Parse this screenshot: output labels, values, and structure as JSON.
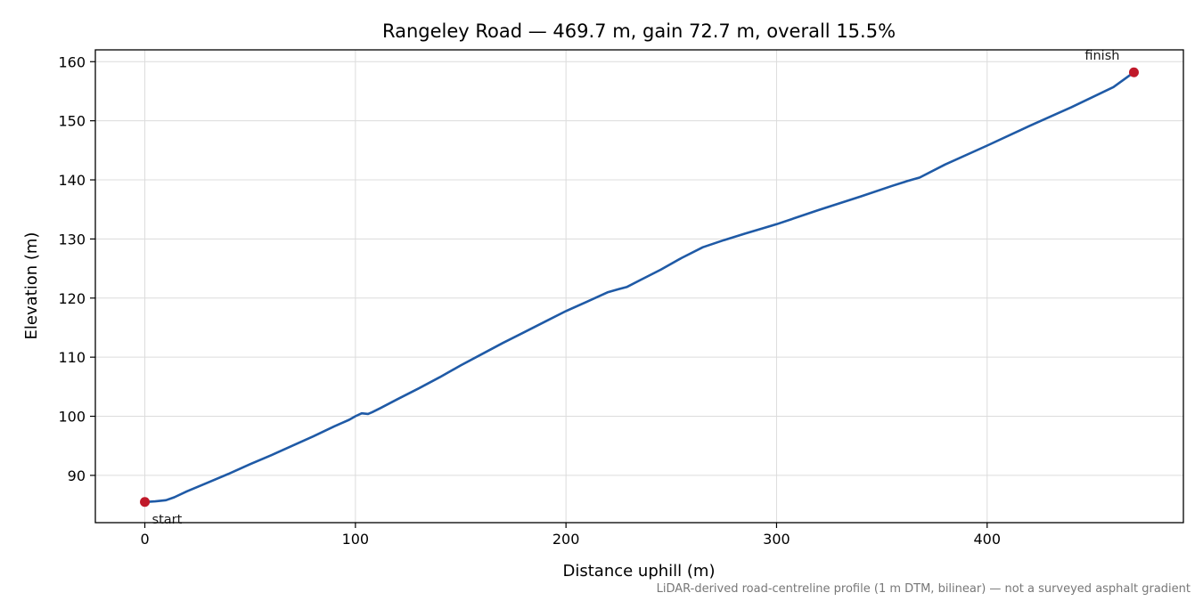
{
  "chart_data": {
    "type": "line",
    "title": "Rangeley Road — 469.7 m, gain 72.7 m, overall 15.5%",
    "xlabel": "Distance uphill (m)",
    "ylabel": "Elevation (m)",
    "footnote": "LiDAR-derived road-centreline profile (1 m DTM, bilinear) — not a surveyed asphalt gradient",
    "xlim": [
      -23.5,
      493.2
    ],
    "ylim": [
      82,
      162
    ],
    "xticks": [
      0,
      100,
      200,
      300,
      400
    ],
    "yticks": [
      90,
      100,
      110,
      120,
      130,
      140,
      150,
      160
    ],
    "grid": true,
    "series": [
      {
        "color": "#1f5aa6",
        "points": [
          [
            0,
            85.5
          ],
          [
            5,
            85.6
          ],
          [
            10,
            85.8
          ],
          [
            14,
            86.3
          ],
          [
            20,
            87.3
          ],
          [
            30,
            88.8
          ],
          [
            40,
            90.3
          ],
          [
            50,
            91.9
          ],
          [
            60,
            93.4
          ],
          [
            70,
            95.0
          ],
          [
            80,
            96.6
          ],
          [
            90,
            98.3
          ],
          [
            97,
            99.4
          ],
          [
            100,
            100.0
          ],
          [
            103,
            100.5
          ],
          [
            106,
            100.4
          ],
          [
            108,
            100.7
          ],
          [
            112,
            101.4
          ],
          [
            120,
            102.9
          ],
          [
            130,
            104.7
          ],
          [
            140,
            106.6
          ],
          [
            150,
            108.6
          ],
          [
            160,
            110.5
          ],
          [
            170,
            112.4
          ],
          [
            180,
            114.2
          ],
          [
            190,
            116.0
          ],
          [
            200,
            117.8
          ],
          [
            210,
            119.4
          ],
          [
            220,
            121.0
          ],
          [
            225,
            121.5
          ],
          [
            229,
            121.9
          ],
          [
            235,
            123.0
          ],
          [
            245,
            124.8
          ],
          [
            255,
            126.8
          ],
          [
            265,
            128.6
          ],
          [
            275,
            129.8
          ],
          [
            285,
            130.9
          ],
          [
            300,
            132.5
          ],
          [
            320,
            134.9
          ],
          [
            340,
            137.2
          ],
          [
            355,
            139.0
          ],
          [
            362,
            139.8
          ],
          [
            368,
            140.4
          ],
          [
            380,
            142.6
          ],
          [
            400,
            145.8
          ],
          [
            420,
            149.1
          ],
          [
            440,
            152.3
          ],
          [
            460,
            155.7
          ],
          [
            469.7,
            158.2
          ]
        ]
      }
    ],
    "markers": [
      {
        "label": "start",
        "x": 0,
        "y": 85.5,
        "color": "#c0192a"
      },
      {
        "label": "finish",
        "x": 469.7,
        "y": 158.2,
        "color": "#c0192a"
      }
    ]
  }
}
